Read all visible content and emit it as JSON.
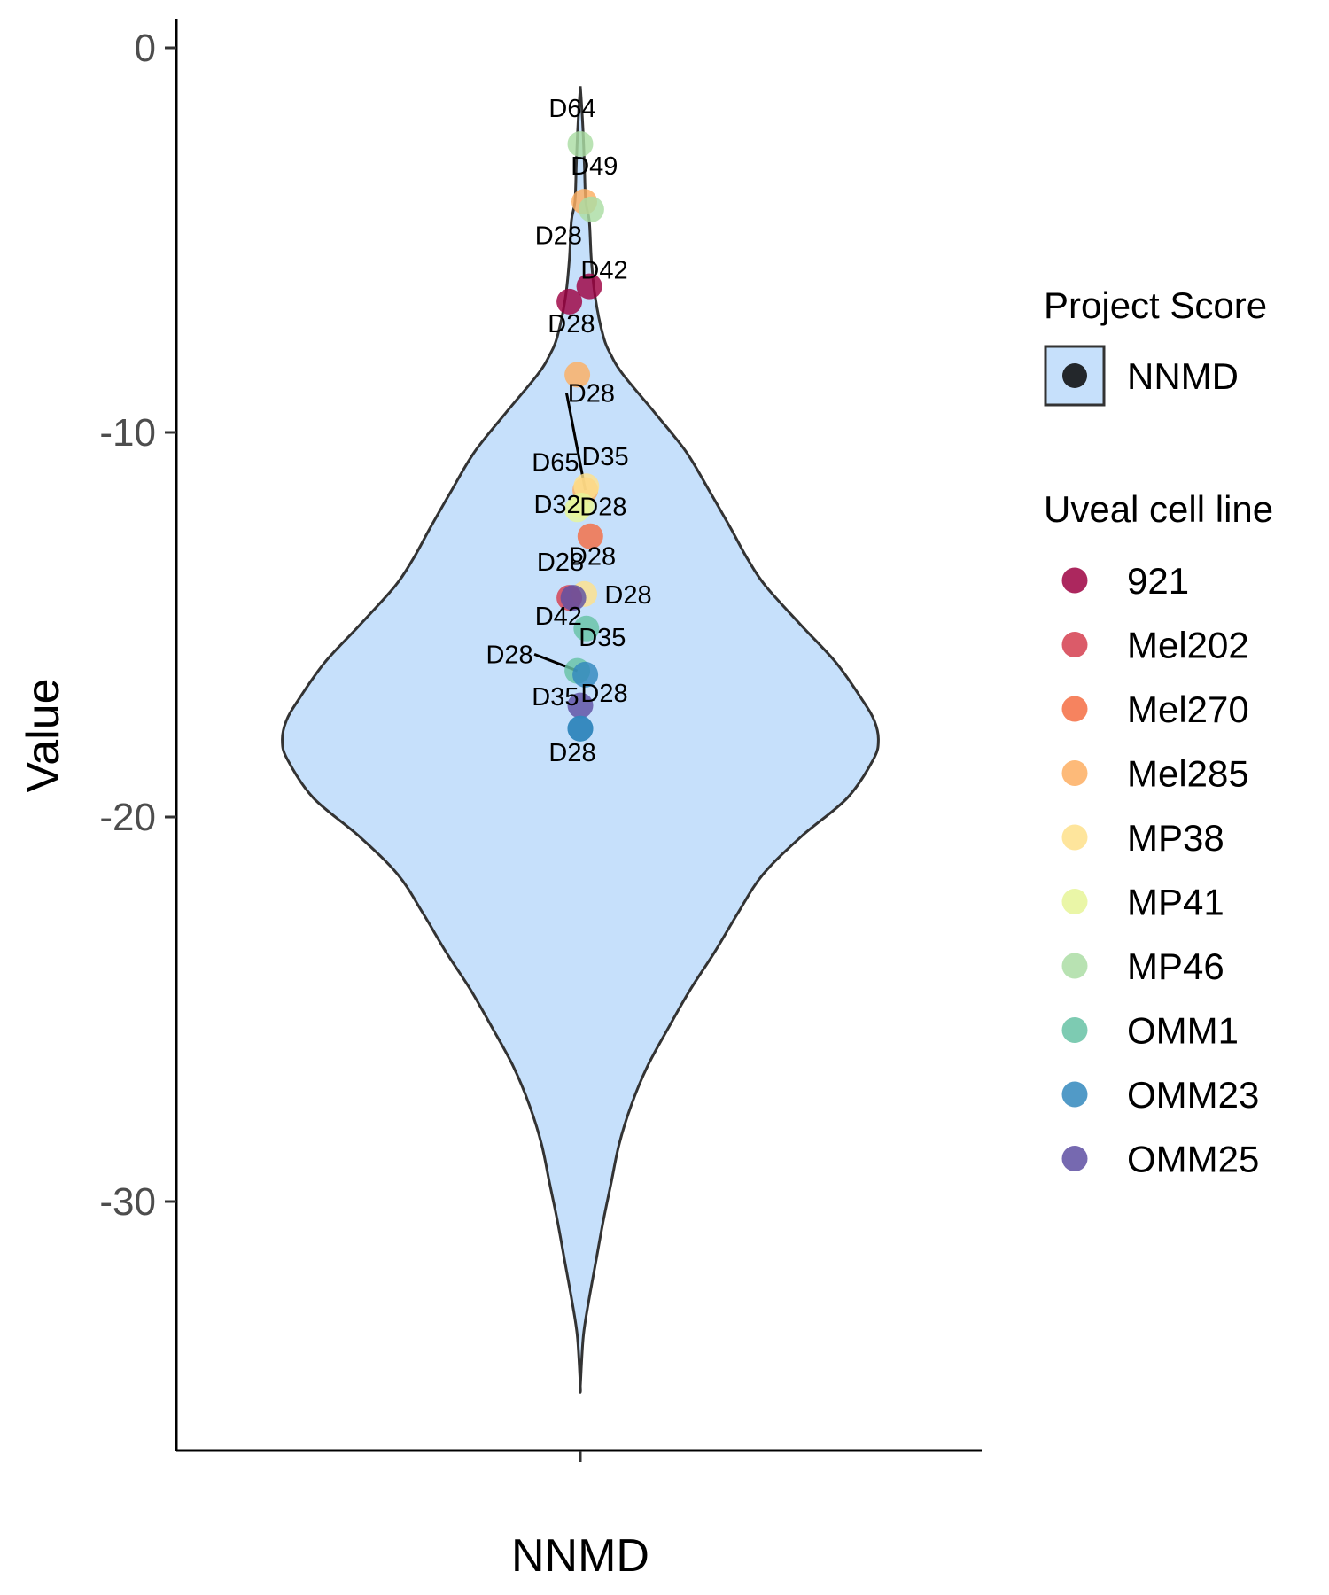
{
  "chart_data": {
    "type": "violin",
    "xlabel": "NNMD",
    "ylabel": "Value",
    "categories": [
      "NNMD"
    ],
    "ylim": [
      -36.5,
      0.7
    ],
    "yticks": [
      0,
      -10,
      -20,
      -30
    ],
    "grid": false,
    "legend_position": "right",
    "violin": {
      "category": "NNMD",
      "fill": "#C6E0FB",
      "stroke": "#333333",
      "range": [
        -34.8,
        -1.0
      ],
      "density_profile": [
        {
          "y": -1.0,
          "w": 0.0
        },
        {
          "y": -2.0,
          "w": 0.12
        },
        {
          "y": -3.0,
          "w": 0.2
        },
        {
          "y": -4.0,
          "w": 0.27
        },
        {
          "y": -4.5,
          "w": 0.45
        },
        {
          "y": -5.5,
          "w": 0.55
        },
        {
          "y": -6.5,
          "w": 0.75
        },
        {
          "y": -7.5,
          "w": 1.15
        },
        {
          "y": -8.0,
          "w": 1.55
        },
        {
          "y": -8.5,
          "w": 2.15
        },
        {
          "y": -9.5,
          "w": 3.75
        },
        {
          "y": -10.5,
          "w": 5.3
        },
        {
          "y": -11.5,
          "w": 6.45
        },
        {
          "y": -12.5,
          "w": 7.55
        },
        {
          "y": -13.3,
          "w": 8.4
        },
        {
          "y": -14.0,
          "w": 9.3
        },
        {
          "y": -15.0,
          "w": 11.05
        },
        {
          "y": -16.0,
          "w": 12.85
        },
        {
          "y": -17.0,
          "w": 14.2
        },
        {
          "y": -17.5,
          "w": 14.75
        },
        {
          "y": -18.0,
          "w": 14.95
        },
        {
          "y": -18.5,
          "w": 14.7
        },
        {
          "y": -19.5,
          "w": 13.4
        },
        {
          "y": -20.5,
          "w": 11.1
        },
        {
          "y": -21.5,
          "w": 9.15
        },
        {
          "y": -22.5,
          "w": 7.9
        },
        {
          "y": -23.5,
          "w": 6.75
        },
        {
          "y": -24.5,
          "w": 5.5
        },
        {
          "y": -25.5,
          "w": 4.4
        },
        {
          "y": -26.5,
          "w": 3.35
        },
        {
          "y": -27.5,
          "w": 2.55
        },
        {
          "y": -28.5,
          "w": 1.95
        },
        {
          "y": -29.5,
          "w": 1.55
        },
        {
          "y": -30.5,
          "w": 1.15
        },
        {
          "y": -31.5,
          "w": 0.8
        },
        {
          "y": -32.5,
          "w": 0.45
        },
        {
          "y": -33.5,
          "w": 0.15
        },
        {
          "y": -34.8,
          "w": 0.0
        }
      ]
    },
    "points": [
      {
        "cell_line": "MP46",
        "x": 0.0,
        "y": -2.5,
        "label": "D64",
        "label_dx": -0.4,
        "label_dy": 0.7
      },
      {
        "cell_line": "Mel285",
        "x": 0.2,
        "y": -4.0,
        "label": "D49",
        "label_dx": 0.5,
        "label_dy": 0.7
      },
      {
        "cell_line": "MP46",
        "x": 0.55,
        "y": -4.2,
        "label": "",
        "label_dx": 0,
        "label_dy": 0
      },
      {
        "cell_line": "921",
        "x": -0.55,
        "y": -6.6,
        "label": "D28",
        "label_dx": -0.55,
        "label_dy": 1.5
      },
      {
        "cell_line": "921",
        "x": 0.45,
        "y": -6.2,
        "label": "D42",
        "label_dx": 0.75,
        "label_dy": 0.2
      },
      {
        "cell_line": "Mel285",
        "x": -0.15,
        "y": -8.5,
        "label": "D28",
        "label_dx": -0.3,
        "label_dy": 1.1
      },
      {
        "cell_line": "Mel285",
        "x": 0.25,
        "y": -11.5,
        "label": "D28",
        "label_dx": 0.3,
        "label_dy": 2.3
      },
      {
        "cell_line": "MP38",
        "x": 0.3,
        "y": -11.4,
        "label": "D35",
        "label_dx": 0.95,
        "label_dy": 0.55
      },
      {
        "cell_line": "MP41",
        "x": -0.15,
        "y": -12.0,
        "label": "D65",
        "label_dx": -1.1,
        "label_dy": 1.0
      },
      {
        "cell_line": "MP41",
        "x": 0.05,
        "y": -11.9,
        "label": "D32",
        "label_dx": -1.2,
        "label_dy": -0.2
      },
      {
        "cell_line": "Mel270",
        "x": 0.5,
        "y": -12.7,
        "label": "D28",
        "label_dx": 0.65,
        "label_dy": 0.55
      },
      {
        "cell_line": "MP38",
        "x": 0.2,
        "y": -14.2,
        "label": "D28",
        "label_dx": 0.4,
        "label_dy": 0.75
      },
      {
        "cell_line": "Mel202",
        "x": -0.55,
        "y": -14.3,
        "label": "D28",
        "label_dx": -0.45,
        "label_dy": 0.7
      },
      {
        "cell_line": "OMM25",
        "x": -0.35,
        "y": -14.3,
        "label": "D28",
        "label_dx": 2.75,
        "label_dy": -0.15
      },
      {
        "cell_line": "OMM1",
        "x": 0.3,
        "y": -15.1,
        "label": "D42",
        "label_dx": -1.4,
        "label_dy": 0.1
      },
      {
        "cell_line": "OMM1",
        "x": -0.15,
        "y": -16.2,
        "label": "D28",
        "label_dx": -3.4,
        "label_dy": 0.2
      },
      {
        "cell_line": "OMM23",
        "x": 0.25,
        "y": -16.3,
        "label": "D35",
        "label_dx": 0.85,
        "label_dy": 0.75
      },
      {
        "cell_line": "OMM25",
        "x": 0.0,
        "y": -17.1,
        "label": "D35",
        "label_dx": -1.25,
        "label_dy": 0.0
      },
      {
        "cell_line": "OMM23",
        "x": 0.0,
        "y": -17.7,
        "label": "D28",
        "label_dx": 1.2,
        "label_dy": 0.7
      },
      {
        "cell_line": "OMM23",
        "x": 0.0,
        "y": -17.7,
        "label": "D28",
        "label_dx": -0.4,
        "label_dy": -0.85
      }
    ]
  },
  "legend": {
    "project_title": "Project Score",
    "project_item": "NNMD",
    "project_swatch_fill": "#C6E0FB",
    "project_point_color": "#23272b",
    "cell_title": "Uveal cell line",
    "cell_lines": [
      {
        "name": "921",
        "color": "#9E0142"
      },
      {
        "name": "Mel202",
        "color": "#D53E4F"
      },
      {
        "name": "Mel270",
        "color": "#F46D43"
      },
      {
        "name": "Mel285",
        "color": "#FDAE61"
      },
      {
        "name": "MP38",
        "color": "#FEE08B"
      },
      {
        "name": "MP41",
        "color": "#E6F598"
      },
      {
        "name": "MP46",
        "color": "#ABDDA4"
      },
      {
        "name": "OMM1",
        "color": "#66C2A5"
      },
      {
        "name": "OMM23",
        "color": "#3288BD"
      },
      {
        "name": "OMM25",
        "color": "#5E4FA2"
      }
    ]
  }
}
